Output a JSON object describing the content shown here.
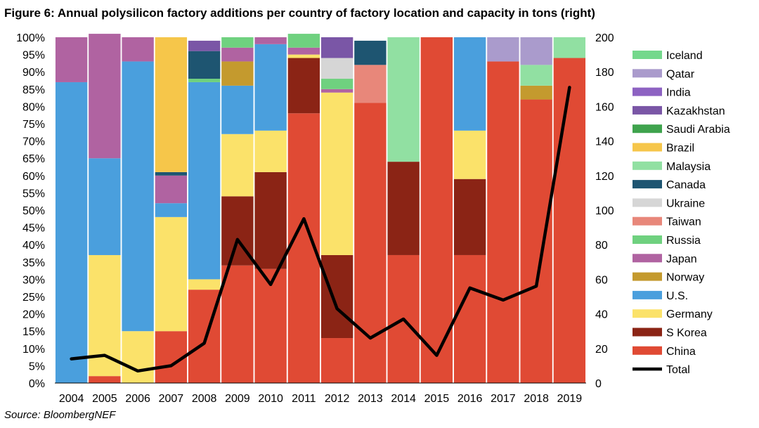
{
  "figure": {
    "title": "Figure 6:  Annual polysilicon factory additions per country of factory location and capacity in tons (right)",
    "source": "Source: BloombergNEF"
  },
  "chart_data": {
    "type": "bar",
    "stacked": true,
    "categories": [
      "2004",
      "2005",
      "2006",
      "2007",
      "2008",
      "2009",
      "2010",
      "2011",
      "2012",
      "2013",
      "2014",
      "2015",
      "2016",
      "2017",
      "2018",
      "2019"
    ],
    "left_axis": {
      "ticks": [
        "0%",
        "5%",
        "10%",
        "15%",
        "20%",
        "25%",
        "30%",
        "35%",
        "40%",
        "45%",
        "50%",
        "55%",
        "60%",
        "65%",
        "70%",
        "75%",
        "80%",
        "85%",
        "90%",
        "95%",
        "100%"
      ],
      "ylim": [
        0,
        100
      ]
    },
    "right_axis": {
      "ticks": [
        "0",
        "20",
        "40",
        "60",
        "80",
        "100",
        "120",
        "140",
        "160",
        "180",
        "200"
      ],
      "ylim": [
        0,
        200
      ]
    },
    "series": [
      {
        "name": "China",
        "color": "#e04a34",
        "values": [
          0,
          2,
          0,
          15,
          27,
          34,
          33,
          78,
          13,
          81,
          37,
          100,
          37,
          93,
          82,
          94
        ]
      },
      {
        "name": "S Korea",
        "color": "#8b2415",
        "values": [
          0,
          0,
          0,
          0,
          0,
          20,
          28,
          16,
          24,
          0,
          27,
          0,
          22,
          0,
          0,
          0
        ]
      },
      {
        "name": "Germany",
        "color": "#fbe26a",
        "values": [
          0,
          35,
          15,
          33,
          3,
          18,
          12,
          1,
          47,
          0,
          0,
          0,
          14,
          0,
          0,
          0
        ]
      },
      {
        "name": "U.S.",
        "color": "#4a9fdd",
        "values": [
          87,
          28,
          78,
          4,
          57,
          14,
          25,
          0,
          0,
          0,
          0,
          0,
          27,
          0,
          0,
          0
        ]
      },
      {
        "name": "Norway",
        "color": "#c49a2e",
        "values": [
          0,
          0,
          0,
          0,
          0,
          7,
          0,
          0,
          0,
          0,
          0,
          0,
          0,
          0,
          4,
          0
        ]
      },
      {
        "name": "Japan",
        "color": "#b063a1",
        "values": [
          13,
          36,
          7,
          8,
          0,
          4,
          2,
          2,
          1,
          0,
          0,
          0,
          0,
          0,
          0,
          0
        ]
      },
      {
        "name": "Russia",
        "color": "#6fd17f",
        "values": [
          0,
          0,
          0,
          0,
          1,
          3,
          0,
          4,
          3,
          0,
          0,
          0,
          0,
          0,
          0,
          0
        ]
      },
      {
        "name": "Taiwan",
        "color": "#e8877a",
        "values": [
          0,
          0,
          0,
          0,
          0,
          0,
          0,
          0,
          0,
          11,
          0,
          0,
          0,
          0,
          0,
          0
        ]
      },
      {
        "name": "Ukraine",
        "color": "#d6d6d6",
        "values": [
          0,
          0,
          0,
          0,
          0,
          0,
          0,
          0,
          6,
          0,
          0,
          0,
          0,
          0,
          0,
          0
        ]
      },
      {
        "name": "Canada",
        "color": "#1e5571",
        "values": [
          0,
          0,
          0,
          1,
          8,
          0,
          0,
          0,
          0,
          7,
          0,
          0,
          0,
          0,
          0,
          0
        ]
      },
      {
        "name": "Malaysia",
        "color": "#91e0a2",
        "values": [
          0,
          0,
          0,
          0,
          0,
          0,
          0,
          0,
          0,
          0,
          36,
          0,
          0,
          0,
          6,
          6
        ]
      },
      {
        "name": "Brazil",
        "color": "#f6c64a",
        "values": [
          0,
          0,
          0,
          39,
          0,
          0,
          0,
          0,
          0,
          0,
          0,
          0,
          0,
          0,
          0,
          0
        ]
      },
      {
        "name": "Saudi Arabia",
        "color": "#3fa34d",
        "values": [
          0,
          0,
          0,
          0,
          0,
          0,
          0,
          0,
          0,
          0,
          0,
          0,
          0,
          0,
          0,
          0
        ]
      },
      {
        "name": "Kazakhstan",
        "color": "#7a56a6",
        "values": [
          0,
          0,
          0,
          0,
          3,
          0,
          0,
          0,
          6,
          0,
          0,
          0,
          0,
          0,
          0,
          0
        ]
      },
      {
        "name": "India",
        "color": "#8d62c2",
        "values": [
          0,
          0,
          0,
          0,
          0,
          0,
          0,
          0,
          0,
          0,
          0,
          0,
          0,
          0,
          0,
          0
        ]
      },
      {
        "name": "Qatar",
        "color": "#aa9bcc",
        "values": [
          0,
          0,
          0,
          0,
          0,
          0,
          0,
          0,
          0,
          0,
          0,
          0,
          0,
          7,
          8,
          0
        ]
      },
      {
        "name": "Iceland",
        "color": "#74d88c",
        "values": [
          0,
          0,
          0,
          0,
          0,
          0,
          0,
          0,
          0,
          0,
          0,
          0,
          0,
          0,
          0,
          0
        ]
      }
    ],
    "line": {
      "name": "Total",
      "color": "#000000",
      "axis": "right",
      "values": [
        14,
        16,
        7,
        10,
        23,
        83,
        57,
        95,
        43,
        26,
        37,
        16,
        55,
        48,
        56,
        171
      ]
    },
    "legend_order": [
      "Iceland",
      "Qatar",
      "India",
      "Kazakhstan",
      "Saudi Arabia",
      "Brazil",
      "Malaysia",
      "Canada",
      "Ukraine",
      "Taiwan",
      "Russia",
      "Japan",
      "Norway",
      "U.S.",
      "Germany",
      "S Korea",
      "China",
      "Total"
    ],
    "legend_position": "right"
  }
}
